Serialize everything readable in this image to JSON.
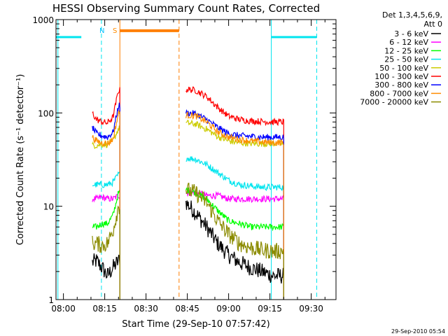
{
  "chart_data": {
    "type": "line",
    "title": "HESSI Observing Summary Count Rates, Corrected",
    "xlabel": "Start Time (29-Sep-10 07:57:42)",
    "ylabel": "Corrected Count Rate (s⁻¹ detector⁻¹)",
    "timestamp": "29-Sep-2010 05:54",
    "yscale": "log",
    "xlim_minutes": [
      -2.7,
      99
    ],
    "ylim": [
      1,
      1000
    ],
    "x_ticks": [
      {
        "label": "08:00",
        "t": 0
      },
      {
        "label": "08:15",
        "t": 15
      },
      {
        "label": "08:30",
        "t": 30
      },
      {
        "label": "08:45",
        "t": 45
      },
      {
        "label": "09:00",
        "t": 60
      },
      {
        "label": "09:15",
        "t": 75
      },
      {
        "label": "09:30",
        "t": 90
      }
    ],
    "y_ticks": [
      {
        "label": "1",
        "v": 1
      },
      {
        "label": "10",
        "v": 10
      },
      {
        "label": "100",
        "v": 100
      },
      {
        "label": "1000",
        "v": 1000
      }
    ],
    "legend": {
      "header_line1": "Det 1,3,4,5,6,9,",
      "header_line2": "Att 0",
      "position": "top-right"
    },
    "markers": [
      {
        "label": "N",
        "color": "#00bfff",
        "t": 14
      },
      {
        "label": "S",
        "color": "#ff8c00",
        "t": 18.7
      }
    ],
    "night_bars": [
      {
        "color": "#00e5ee",
        "from": -2.7,
        "to": 6.5,
        "level": 650
      },
      {
        "color": "#00e5ee",
        "from": 75.5,
        "to": 92,
        "level": 650
      }
    ],
    "saa_bars": [
      {
        "color": "#ff7f00",
        "from": 20.5,
        "to": 42,
        "level": 760
      }
    ],
    "vertical_lines": [
      {
        "color": "#00e5ee",
        "style": "solid",
        "t": -2
      },
      {
        "color": "#00e5ee",
        "style": "dashed",
        "t": 13.8
      },
      {
        "color": "#ff7f00",
        "style": "solid",
        "t": 20.5
      },
      {
        "color": "#ff7f00",
        "style": "dashed",
        "t": 42
      },
      {
        "color": "#00e5ee",
        "style": "solid",
        "t": 75.5
      },
      {
        "color": "#00e5ee",
        "style": "dashed",
        "t": 92
      }
    ],
    "segments": [
      [
        10.5,
        20.5
      ],
      [
        44.5,
        80
      ]
    ],
    "series": [
      {
        "name": "3 - 6 keV",
        "color": "#000000",
        "values": [
          [
            10.5,
            2.5
          ],
          [
            12,
            2.6
          ],
          [
            14,
            2.2
          ],
          [
            16,
            1.8
          ],
          [
            18,
            2.2
          ],
          [
            20,
            2.6
          ],
          [
            44.5,
            11
          ],
          [
            48,
            8.5
          ],
          [
            52,
            6
          ],
          [
            56,
            4
          ],
          [
            60,
            3
          ],
          [
            64,
            2.5
          ],
          [
            68,
            2.2
          ],
          [
            72,
            2
          ],
          [
            76,
            1.8
          ],
          [
            80,
            1.8
          ]
        ]
      },
      {
        "name": "6 - 12 keV",
        "color": "#ff00ff",
        "values": [
          [
            10.5,
            12
          ],
          [
            12,
            12
          ],
          [
            14,
            12.5
          ],
          [
            16,
            12
          ],
          [
            18,
            12
          ],
          [
            20,
            13
          ],
          [
            44.5,
            14
          ],
          [
            48,
            14
          ],
          [
            52,
            13
          ],
          [
            56,
            13
          ],
          [
            60,
            12
          ],
          [
            64,
            12
          ],
          [
            68,
            12
          ],
          [
            72,
            12
          ],
          [
            76,
            12
          ],
          [
            80,
            12
          ]
        ]
      },
      {
        "name": "12 - 25 keV",
        "color": "#00ff00",
        "values": [
          [
            10.5,
            6
          ],
          [
            12,
            6
          ],
          [
            14,
            6.5
          ],
          [
            16,
            6.5
          ],
          [
            18,
            8
          ],
          [
            20,
            14
          ],
          [
            44.5,
            15
          ],
          [
            48,
            14
          ],
          [
            52,
            12
          ],
          [
            56,
            9
          ],
          [
            60,
            7
          ],
          [
            64,
            6.5
          ],
          [
            68,
            6
          ],
          [
            72,
            6
          ],
          [
            76,
            6
          ],
          [
            80,
            6
          ]
        ]
      },
      {
        "name": "25 - 50 keV",
        "color": "#00e5ee",
        "values": [
          [
            10.5,
            17
          ],
          [
            12,
            17
          ],
          [
            14,
            17
          ],
          [
            16,
            17
          ],
          [
            18,
            18
          ],
          [
            20,
            22
          ],
          [
            44.5,
            33
          ],
          [
            48,
            32
          ],
          [
            52,
            28
          ],
          [
            56,
            23
          ],
          [
            60,
            19
          ],
          [
            64,
            17
          ],
          [
            68,
            16.5
          ],
          [
            72,
            16
          ],
          [
            76,
            16
          ],
          [
            80,
            16
          ]
        ]
      },
      {
        "name": "50 - 100 keV",
        "color": "#cccc00",
        "values": [
          [
            10.5,
            45
          ],
          [
            12,
            45
          ],
          [
            14,
            46
          ],
          [
            16,
            46
          ],
          [
            18,
            50
          ],
          [
            20,
            68
          ],
          [
            44.5,
            78
          ],
          [
            48,
            76
          ],
          [
            52,
            67
          ],
          [
            56,
            56
          ],
          [
            60,
            50
          ],
          [
            64,
            48
          ],
          [
            68,
            47
          ],
          [
            72,
            47
          ],
          [
            76,
            47
          ],
          [
            80,
            47
          ]
        ]
      },
      {
        "name": "100 - 300 keV",
        "color": "#ff0000",
        "values": [
          [
            10.5,
            100
          ],
          [
            12,
            85
          ],
          [
            14,
            80
          ],
          [
            16,
            78
          ],
          [
            18,
            90
          ],
          [
            20,
            175
          ],
          [
            44.5,
            180
          ],
          [
            48,
            175
          ],
          [
            52,
            150
          ],
          [
            56,
            115
          ],
          [
            60,
            92
          ],
          [
            64,
            85
          ],
          [
            68,
            82
          ],
          [
            72,
            81
          ],
          [
            76,
            80
          ],
          [
            80,
            80
          ]
        ]
      },
      {
        "name": "300 - 800 keV",
        "color": "#0000ff",
        "values": [
          [
            10.5,
            70
          ],
          [
            12,
            60
          ],
          [
            14,
            57
          ],
          [
            16,
            55
          ],
          [
            18,
            62
          ],
          [
            20,
            120
          ],
          [
            44.5,
            100
          ],
          [
            48,
            98
          ],
          [
            52,
            85
          ],
          [
            56,
            70
          ],
          [
            60,
            60
          ],
          [
            64,
            57
          ],
          [
            68,
            56
          ],
          [
            72,
            55
          ],
          [
            76,
            55
          ],
          [
            80,
            55
          ]
        ]
      },
      {
        "name": "800 - 7000 keV",
        "color": "#ff8c00",
        "values": [
          [
            10.5,
            55
          ],
          [
            12,
            50
          ],
          [
            14,
            48
          ],
          [
            16,
            47
          ],
          [
            18,
            52
          ],
          [
            20,
            100
          ],
          [
            44.5,
            95
          ],
          [
            48,
            93
          ],
          [
            52,
            80
          ],
          [
            56,
            63
          ],
          [
            60,
            55
          ],
          [
            64,
            52
          ],
          [
            68,
            50
          ],
          [
            72,
            49
          ],
          [
            76,
            48
          ],
          [
            80,
            48
          ]
        ]
      },
      {
        "name": "7000 - 20000 keV",
        "color": "#8b8b00",
        "values": [
          [
            10.5,
            4
          ],
          [
            12,
            4
          ],
          [
            14,
            3.8
          ],
          [
            16,
            4
          ],
          [
            18,
            5.5
          ],
          [
            20,
            10
          ],
          [
            44.5,
            15
          ],
          [
            48,
            14
          ],
          [
            52,
            11
          ],
          [
            56,
            7
          ],
          [
            60,
            5
          ],
          [
            64,
            4
          ],
          [
            68,
            3.6
          ],
          [
            72,
            3.4
          ],
          [
            76,
            3.3
          ],
          [
            80,
            3.3
          ]
        ]
      }
    ]
  }
}
